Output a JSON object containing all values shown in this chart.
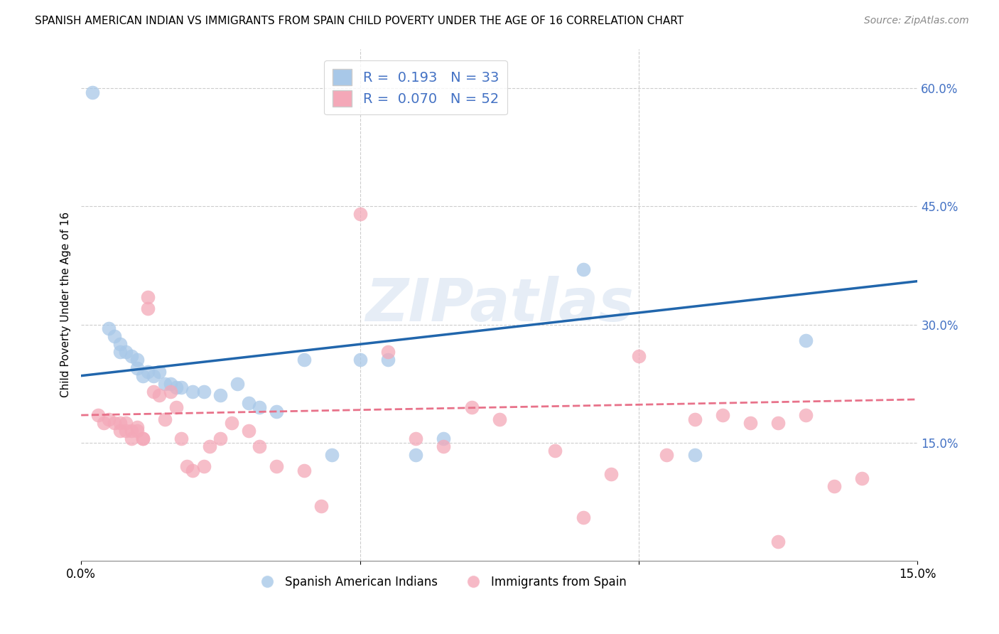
{
  "title": "SPANISH AMERICAN INDIAN VS IMMIGRANTS FROM SPAIN CHILD POVERTY UNDER THE AGE OF 16 CORRELATION CHART",
  "source": "Source: ZipAtlas.com",
  "ylabel": "Child Poverty Under the Age of 16",
  "xlim": [
    0,
    0.15
  ],
  "ylim": [
    0,
    0.65
  ],
  "xticks": [
    0.0,
    0.05,
    0.1,
    0.15
  ],
  "xtick_labels": [
    "0.0%",
    "",
    "",
    "15.0%"
  ],
  "ytick_labels_right": [
    "60.0%",
    "45.0%",
    "30.0%",
    "15.0%"
  ],
  "ytick_positions_right": [
    0.6,
    0.45,
    0.3,
    0.15
  ],
  "legend_label1": "Spanish American Indians",
  "legend_label2": "Immigrants from Spain",
  "blue_color": "#a8c8e8",
  "pink_color": "#f4a8b8",
  "blue_line_color": "#2166ac",
  "pink_line_color": "#e8728a",
  "watermark": "ZIPatlas",
  "blue_line_x0": 0.0,
  "blue_line_y0": 0.235,
  "blue_line_x1": 0.15,
  "blue_line_y1": 0.355,
  "pink_line_x0": 0.0,
  "pink_line_y0": 0.185,
  "pink_line_x1": 0.15,
  "pink_line_y1": 0.205,
  "blue_x": [
    0.002,
    0.005,
    0.006,
    0.007,
    0.007,
    0.008,
    0.009,
    0.01,
    0.01,
    0.011,
    0.012,
    0.013,
    0.014,
    0.015,
    0.016,
    0.017,
    0.018,
    0.02,
    0.022,
    0.025,
    0.028,
    0.03,
    0.032,
    0.035,
    0.04,
    0.045,
    0.05,
    0.055,
    0.06,
    0.065,
    0.09,
    0.11,
    0.13
  ],
  "blue_y": [
    0.595,
    0.295,
    0.285,
    0.275,
    0.265,
    0.265,
    0.26,
    0.255,
    0.245,
    0.235,
    0.24,
    0.235,
    0.24,
    0.225,
    0.225,
    0.22,
    0.22,
    0.215,
    0.215,
    0.21,
    0.225,
    0.2,
    0.195,
    0.19,
    0.255,
    0.135,
    0.255,
    0.255,
    0.135,
    0.155,
    0.37,
    0.135,
    0.28
  ],
  "pink_x": [
    0.003,
    0.004,
    0.005,
    0.006,
    0.007,
    0.007,
    0.008,
    0.008,
    0.009,
    0.009,
    0.01,
    0.01,
    0.011,
    0.011,
    0.012,
    0.012,
    0.013,
    0.014,
    0.015,
    0.016,
    0.017,
    0.018,
    0.019,
    0.02,
    0.022,
    0.023,
    0.025,
    0.027,
    0.03,
    0.032,
    0.035,
    0.04,
    0.043,
    0.05,
    0.055,
    0.06,
    0.065,
    0.07,
    0.075,
    0.085,
    0.09,
    0.095,
    0.1,
    0.105,
    0.11,
    0.115,
    0.12,
    0.125,
    0.125,
    0.13,
    0.135,
    0.14
  ],
  "pink_y": [
    0.185,
    0.175,
    0.18,
    0.175,
    0.175,
    0.165,
    0.175,
    0.165,
    0.165,
    0.155,
    0.17,
    0.165,
    0.155,
    0.155,
    0.335,
    0.32,
    0.215,
    0.21,
    0.18,
    0.215,
    0.195,
    0.155,
    0.12,
    0.115,
    0.12,
    0.145,
    0.155,
    0.175,
    0.165,
    0.145,
    0.12,
    0.115,
    0.07,
    0.44,
    0.265,
    0.155,
    0.145,
    0.195,
    0.18,
    0.14,
    0.055,
    0.11,
    0.26,
    0.135,
    0.18,
    0.185,
    0.175,
    0.175,
    0.025,
    0.185,
    0.095,
    0.105
  ]
}
